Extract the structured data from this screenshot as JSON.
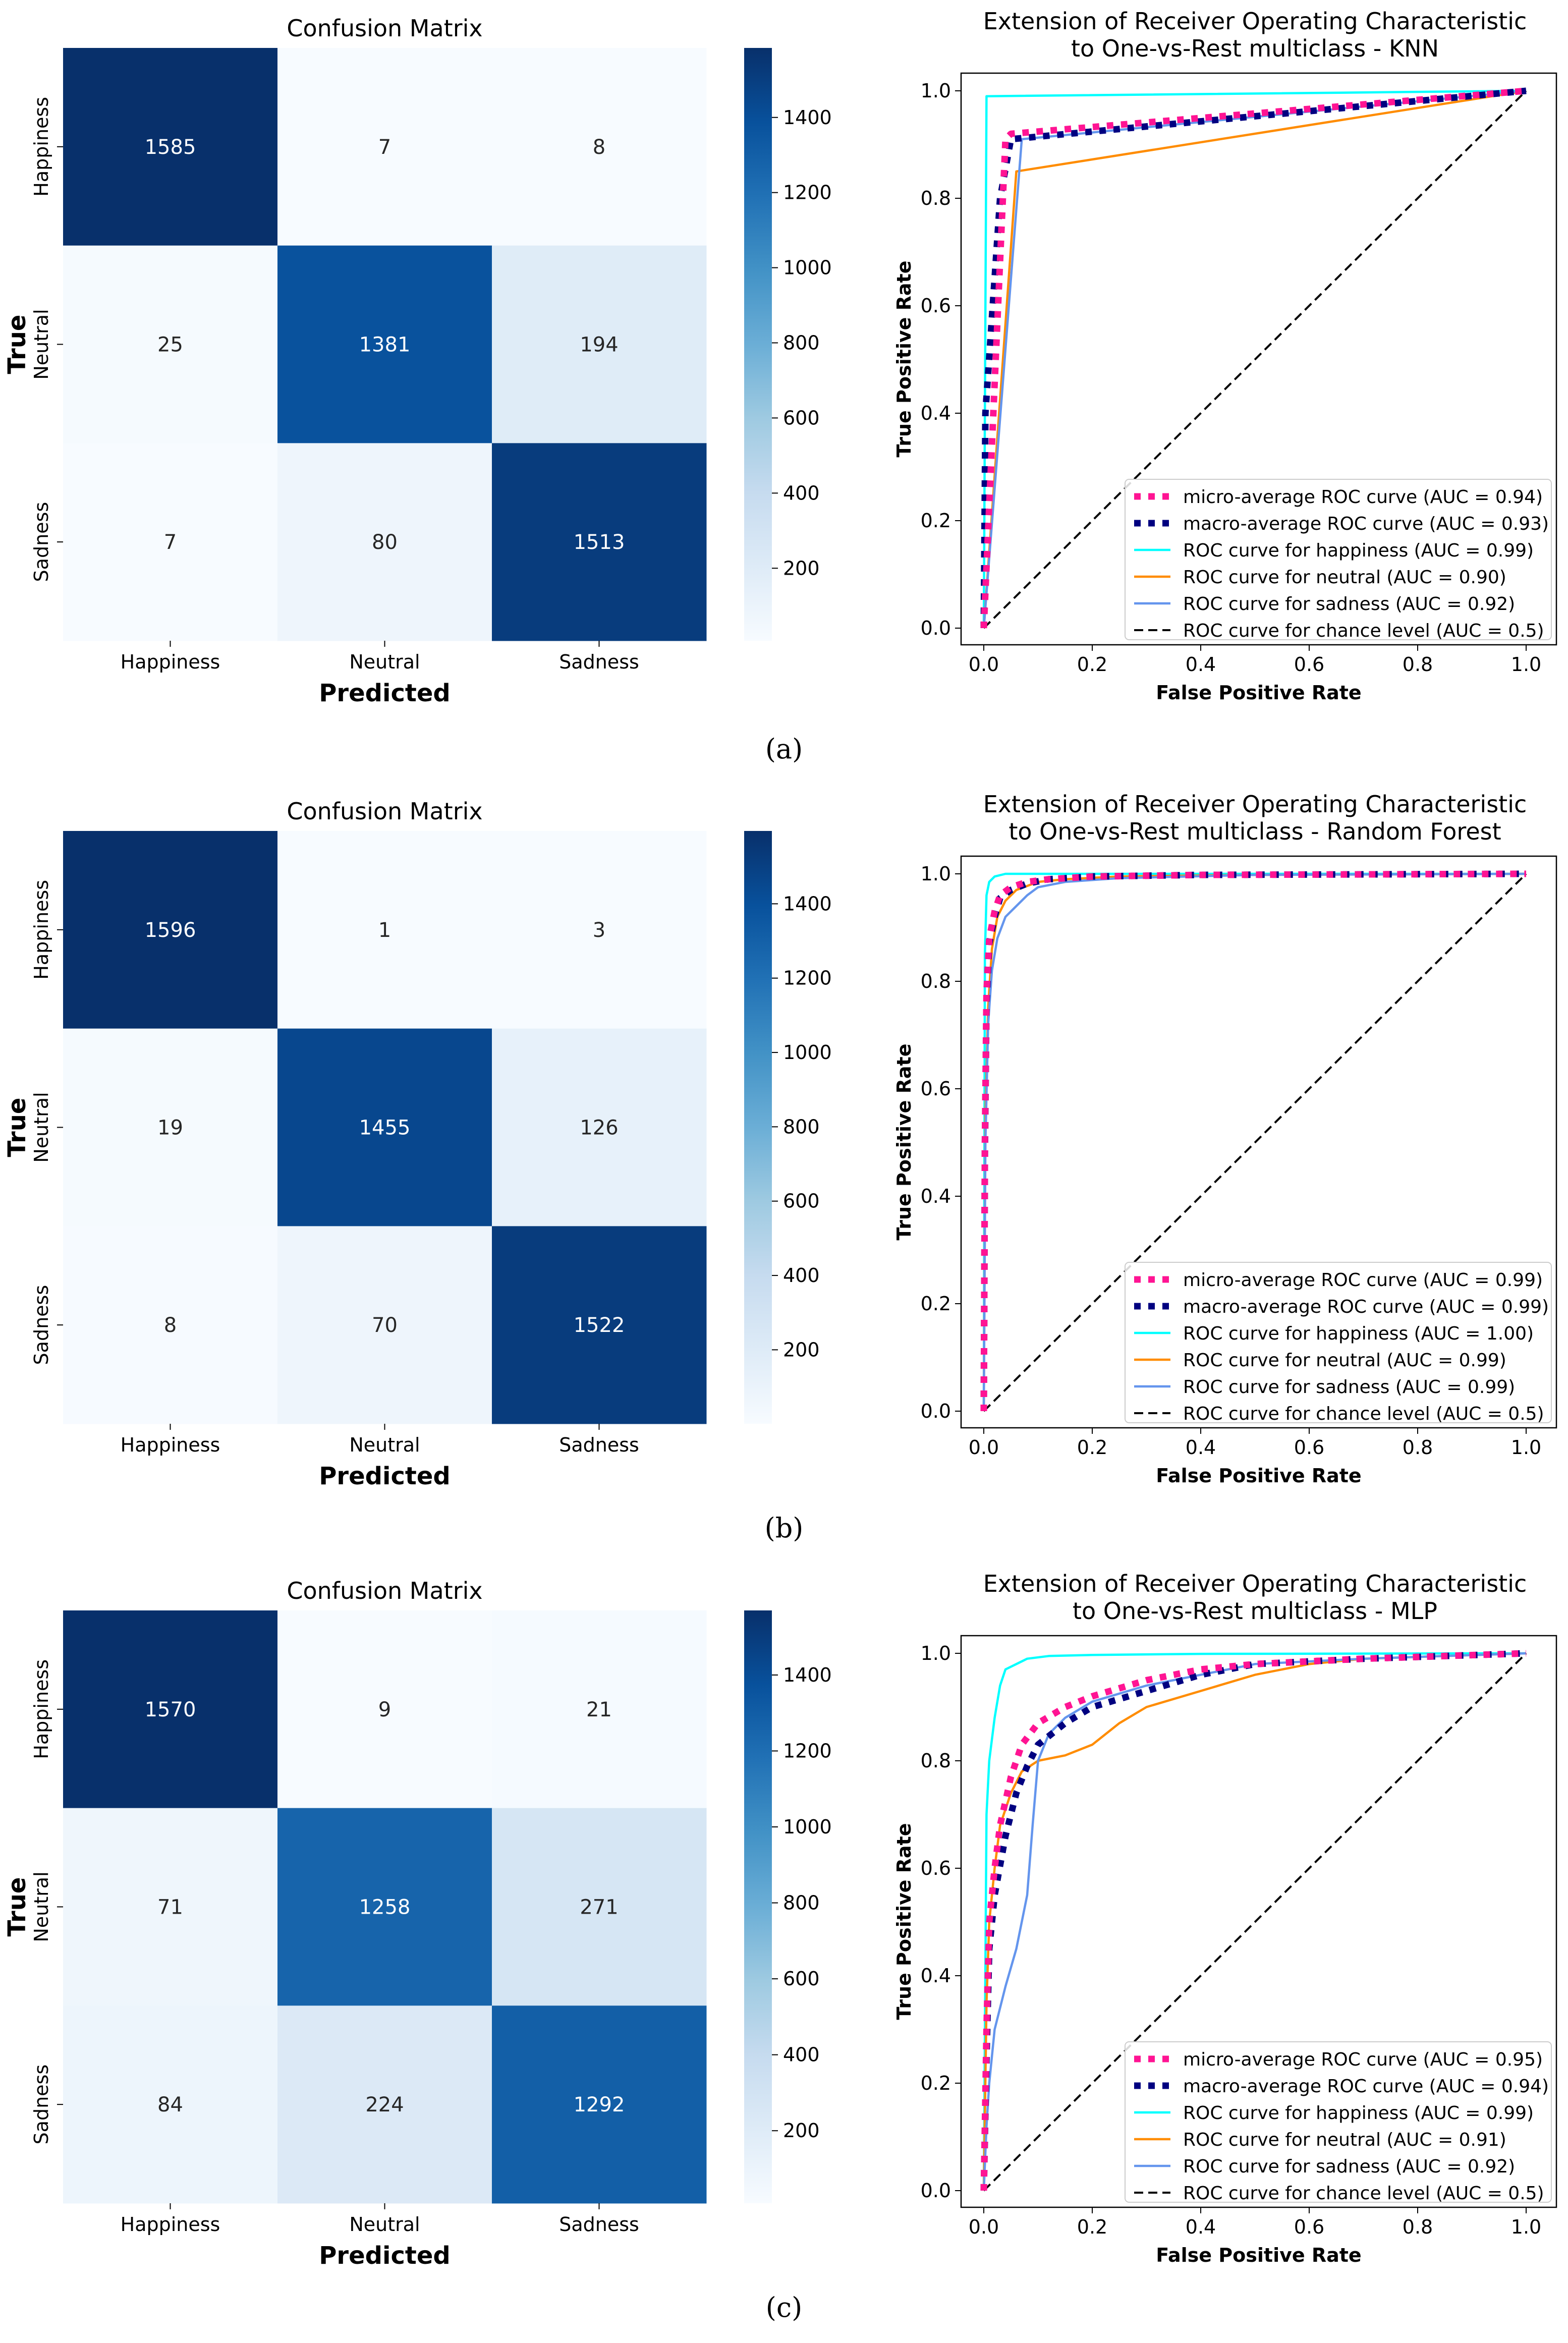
{
  "figure": {
    "caption_labels": [
      "(a)",
      "(b)",
      "(c)"
    ]
  },
  "colors": {
    "blues_low": "#f7fbff",
    "blues_high": "#08306b",
    "micro": "#ff1493",
    "macro": "#000080",
    "happiness": "#00ffff",
    "neutral": "#ff8c00",
    "sadness": "#6495ed",
    "chance": "#000000"
  },
  "chart_data": [
    {
      "type": "heatmap",
      "panel": "a",
      "title": "Confusion Matrix",
      "xlabel": "Predicted",
      "ylabel": "True",
      "x_categories": [
        "Happiness",
        "Neutral",
        "Sadness"
      ],
      "y_categories": [
        "Happiness",
        "Neutral",
        "Sadness"
      ],
      "values": [
        [
          1585,
          7,
          8
        ],
        [
          25,
          1381,
          194
        ],
        [
          7,
          80,
          1513
        ]
      ],
      "colorbar": {
        "vmin": 7,
        "vmax": 1585,
        "ticks": [
          200,
          400,
          600,
          800,
          1000,
          1200,
          1400
        ]
      }
    },
    {
      "type": "line",
      "panel": "a",
      "title": "Extension of Receiver Operating Characteristic\nto One-vs-Rest multiclass - KNN",
      "xlabel": "False Positive Rate",
      "ylabel": "True Positive Rate",
      "xlim": [
        0,
        1
      ],
      "ylim": [
        0,
        1
      ],
      "ticks": [
        "0.0",
        "0.2",
        "0.4",
        "0.6",
        "0.8",
        "1.0"
      ],
      "legend_position": "lower-right",
      "series": [
        {
          "key": "micro",
          "name": "micro-average ROC curve (AUC = 0.94)",
          "style": "dotted",
          "x": [
            0,
            0.04,
            0.05,
            1
          ],
          "y": [
            0,
            0.91,
            0.92,
            1
          ]
        },
        {
          "key": "macro",
          "name": "macro-average ROC curve (AUC = 0.93)",
          "style": "dotted",
          "x": [
            0,
            0.003,
            0.03,
            0.05,
            1
          ],
          "y": [
            0,
            0.4,
            0.8,
            0.91,
            1
          ]
        },
        {
          "key": "happiness",
          "name": "ROC curve for happiness (AUC = 0.99)",
          "style": "solid",
          "x": [
            0,
            0.005,
            1
          ],
          "y": [
            0,
            0.99,
            1
          ]
        },
        {
          "key": "neutral",
          "name": "ROC curve for neutral (AUC = 0.90)",
          "style": "solid",
          "x": [
            0,
            0.06,
            1
          ],
          "y": [
            0,
            0.85,
            1
          ]
        },
        {
          "key": "sadness",
          "name": "ROC curve for sadness (AUC = 0.92)",
          "style": "solid",
          "x": [
            0,
            0.07,
            1
          ],
          "y": [
            0,
            0.91,
            1
          ]
        },
        {
          "key": "chance",
          "name": "ROC curve for chance level (AUC = 0.5)",
          "style": "dashed",
          "x": [
            0,
            1
          ],
          "y": [
            0,
            1
          ]
        }
      ]
    },
    {
      "type": "heatmap",
      "panel": "b",
      "title": "Confusion Matrix",
      "xlabel": "Predicted",
      "ylabel": "True",
      "x_categories": [
        "Happiness",
        "Neutral",
        "Sadness"
      ],
      "y_categories": [
        "Happiness",
        "Neutral",
        "Sadness"
      ],
      "values": [
        [
          1596,
          1,
          3
        ],
        [
          19,
          1455,
          126
        ],
        [
          8,
          70,
          1522
        ]
      ],
      "colorbar": {
        "vmin": 1,
        "vmax": 1596,
        "ticks": [
          200,
          400,
          600,
          800,
          1000,
          1200,
          1400
        ]
      }
    },
    {
      "type": "line",
      "panel": "b",
      "title": "Extension of Receiver Operating Characteristic\nto One-vs-Rest multiclass - Random Forest",
      "xlabel": "False Positive Rate",
      "ylabel": "True Positive Rate",
      "xlim": [
        0,
        1
      ],
      "ylim": [
        0,
        1
      ],
      "ticks": [
        "0.0",
        "0.2",
        "0.4",
        "0.6",
        "0.8",
        "1.0"
      ],
      "legend_position": "lower-right",
      "series": [
        {
          "key": "micro",
          "name": "micro-average ROC curve (AUC = 0.99)",
          "style": "dotted",
          "x": [
            0,
            0.002,
            0.005,
            0.01,
            0.02,
            0.03,
            0.05,
            0.08,
            0.12,
            0.2,
            0.4,
            1
          ],
          "y": [
            0,
            0.5,
            0.78,
            0.88,
            0.93,
            0.96,
            0.975,
            0.985,
            0.99,
            0.995,
            0.998,
            1
          ]
        },
        {
          "key": "macro",
          "name": "macro-average ROC curve (AUC = 0.99)",
          "style": "dotted",
          "x": [
            0,
            0.002,
            0.005,
            0.01,
            0.02,
            0.03,
            0.05,
            0.08,
            0.12,
            0.2,
            0.4,
            1
          ],
          "y": [
            0,
            0.48,
            0.76,
            0.87,
            0.92,
            0.955,
            0.97,
            0.982,
            0.99,
            0.995,
            0.998,
            1
          ]
        },
        {
          "key": "happiness",
          "name": "ROC curve for happiness (AUC = 1.00)",
          "style": "solid",
          "x": [
            0,
            0.002,
            0.005,
            0.01,
            0.02,
            0.04,
            1
          ],
          "y": [
            0,
            0.85,
            0.96,
            0.985,
            0.995,
            1,
            1
          ]
        },
        {
          "key": "neutral",
          "name": "ROC curve for neutral (AUC = 0.99)",
          "style": "solid",
          "x": [
            0,
            0.003,
            0.008,
            0.015,
            0.025,
            0.04,
            0.06,
            0.1,
            0.15,
            0.25,
            0.5,
            1
          ],
          "y": [
            0,
            0.55,
            0.75,
            0.86,
            0.92,
            0.95,
            0.97,
            0.985,
            0.99,
            0.995,
            0.998,
            1
          ]
        },
        {
          "key": "sadness",
          "name": "ROC curve for sadness (AUC = 0.99)",
          "style": "solid",
          "x": [
            0,
            0.003,
            0.008,
            0.015,
            0.025,
            0.04,
            0.06,
            0.08,
            0.1,
            0.15,
            0.25,
            0.5,
            1
          ],
          "y": [
            0,
            0.5,
            0.72,
            0.82,
            0.88,
            0.92,
            0.94,
            0.96,
            0.975,
            0.985,
            0.992,
            0.998,
            1
          ]
        },
        {
          "key": "chance",
          "name": "ROC curve for chance level (AUC = 0.5)",
          "style": "dashed",
          "x": [
            0,
            1
          ],
          "y": [
            0,
            1
          ]
        }
      ]
    },
    {
      "type": "heatmap",
      "panel": "c",
      "title": "Confusion Matrix",
      "xlabel": "Predicted",
      "ylabel": "True",
      "x_categories": [
        "Happiness",
        "Neutral",
        "Sadness"
      ],
      "y_categories": [
        "Happiness",
        "Neutral",
        "Sadness"
      ],
      "values": [
        [
          1570,
          9,
          21
        ],
        [
          71,
          1258,
          271
        ],
        [
          84,
          224,
          1292
        ]
      ],
      "colorbar": {
        "vmin": 9,
        "vmax": 1570,
        "ticks": [
          200,
          400,
          600,
          800,
          1000,
          1200,
          1400
        ]
      }
    },
    {
      "type": "line",
      "panel": "c",
      "title": "Extension of Receiver Operating Characteristic\nto One-vs-Rest multiclass - MLP",
      "xlabel": "False Positive Rate",
      "ylabel": "True Positive Rate",
      "xlim": [
        0,
        1
      ],
      "ylim": [
        0,
        1
      ],
      "ticks": [
        "0.0",
        "0.2",
        "0.4",
        "0.6",
        "0.8",
        "1.0"
      ],
      "legend_position": "lower-right",
      "series": [
        {
          "key": "micro",
          "name": "micro-average ROC curve (AUC = 0.95)",
          "style": "dotted",
          "x": [
            0,
            0.005,
            0.01,
            0.02,
            0.03,
            0.05,
            0.07,
            0.1,
            0.15,
            0.2,
            0.3,
            0.4,
            0.5,
            0.7,
            1
          ],
          "y": [
            0,
            0.3,
            0.5,
            0.6,
            0.68,
            0.77,
            0.83,
            0.87,
            0.9,
            0.92,
            0.95,
            0.97,
            0.98,
            0.99,
            1
          ]
        },
        {
          "key": "macro",
          "name": "macro-average ROC curve (AUC = 0.94)",
          "style": "dotted",
          "x": [
            0,
            0.005,
            0.01,
            0.02,
            0.04,
            0.06,
            0.08,
            0.1,
            0.15,
            0.2,
            0.3,
            0.4,
            0.5,
            0.7,
            1
          ],
          "y": [
            0,
            0.25,
            0.45,
            0.55,
            0.66,
            0.74,
            0.79,
            0.83,
            0.87,
            0.9,
            0.93,
            0.96,
            0.98,
            0.99,
            1
          ]
        },
        {
          "key": "happiness",
          "name": "ROC curve for happiness (AUC = 0.99)",
          "style": "solid",
          "x": [
            0,
            0.005,
            0.01,
            0.02,
            0.03,
            0.04,
            0.06,
            0.08,
            0.12,
            0.2,
            0.4,
            1
          ],
          "y": [
            0,
            0.7,
            0.8,
            0.88,
            0.94,
            0.97,
            0.98,
            0.99,
            0.995,
            0.997,
            0.999,
            1
          ]
        },
        {
          "key": "neutral",
          "name": "ROC curve for neutral (AUC = 0.91)",
          "style": "solid",
          "x": [
            0,
            0.005,
            0.01,
            0.02,
            0.03,
            0.05,
            0.07,
            0.1,
            0.15,
            0.2,
            0.25,
            0.3,
            0.4,
            0.5,
            0.6,
            0.7,
            0.85,
            1
          ],
          "y": [
            0,
            0.35,
            0.5,
            0.6,
            0.68,
            0.74,
            0.78,
            0.8,
            0.81,
            0.83,
            0.87,
            0.9,
            0.93,
            0.96,
            0.98,
            0.99,
            0.995,
            1
          ]
        },
        {
          "key": "sadness",
          "name": "ROC curve for sadness (AUC = 0.92)",
          "style": "solid",
          "x": [
            0,
            0.005,
            0.01,
            0.02,
            0.04,
            0.06,
            0.08,
            0.09,
            0.1,
            0.12,
            0.15,
            0.2,
            0.3,
            0.4,
            0.5,
            0.7,
            1
          ],
          "y": [
            0,
            0.12,
            0.2,
            0.3,
            0.38,
            0.45,
            0.55,
            0.68,
            0.8,
            0.85,
            0.88,
            0.91,
            0.94,
            0.96,
            0.98,
            0.99,
            1
          ]
        },
        {
          "key": "chance",
          "name": "ROC curve for chance level (AUC = 0.5)",
          "style": "dashed",
          "x": [
            0,
            1
          ],
          "y": [
            0,
            1
          ]
        }
      ]
    }
  ]
}
